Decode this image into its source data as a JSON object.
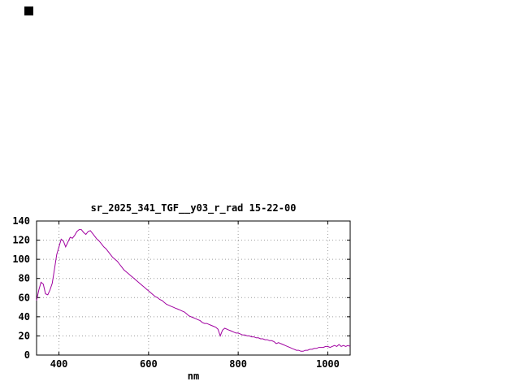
{
  "window": {
    "background": "#ffffff",
    "cursor_color": "#000000"
  },
  "chart_data": {
    "type": "line",
    "title": "sr_2025_341_TGF__y03_r_rad 15-22-00",
    "xlabel": "nm",
    "ylabel": "",
    "xlim": [
      350,
      1050
    ],
    "ylim": [
      0,
      140
    ],
    "xticks": [
      400,
      600,
      800,
      1000
    ],
    "yticks": [
      0,
      20,
      40,
      60,
      80,
      100,
      120,
      140
    ],
    "grid": "dotted",
    "legend": "none",
    "line_color": "#a000a0",
    "grid_color": "#9a9a9a",
    "border_color": "#000000",
    "x": [
      350,
      355,
      360,
      365,
      370,
      375,
      380,
      385,
      390,
      395,
      400,
      405,
      410,
      415,
      420,
      425,
      430,
      435,
      440,
      445,
      450,
      455,
      460,
      465,
      470,
      475,
      480,
      485,
      490,
      495,
      500,
      505,
      510,
      515,
      520,
      525,
      530,
      535,
      540,
      545,
      550,
      555,
      560,
      565,
      570,
      575,
      580,
      585,
      590,
      595,
      600,
      605,
      610,
      615,
      620,
      625,
      630,
      635,
      640,
      645,
      650,
      655,
      660,
      665,
      670,
      675,
      680,
      685,
      690,
      695,
      700,
      705,
      710,
      715,
      720,
      725,
      730,
      735,
      740,
      745,
      750,
      755,
      760,
      765,
      770,
      775,
      780,
      785,
      790,
      795,
      800,
      805,
      810,
      815,
      820,
      825,
      830,
      835,
      840,
      845,
      850,
      855,
      860,
      865,
      870,
      875,
      880,
      885,
      890,
      895,
      900,
      905,
      910,
      915,
      920,
      925,
      930,
      935,
      940,
      945,
      950,
      955,
      960,
      965,
      970,
      975,
      980,
      985,
      990,
      995,
      1000,
      1005,
      1010,
      1015,
      1020,
      1025,
      1030,
      1035,
      1040,
      1045,
      1050
    ],
    "y": [
      57,
      68,
      76,
      74,
      64,
      63,
      68,
      75,
      90,
      105,
      113,
      121,
      119,
      113,
      118,
      123,
      122,
      125,
      129,
      131,
      131,
      128,
      126,
      129,
      130,
      127,
      124,
      121,
      119,
      116,
      113,
      111,
      108,
      105,
      102,
      100,
      98,
      95,
      92,
      89,
      87,
      85,
      83,
      81,
      79,
      77,
      75,
      73,
      71,
      69,
      67,
      65,
      63,
      61,
      60,
      58,
      57,
      55,
      53,
      52,
      51,
      50,
      49,
      48,
      47,
      46,
      45,
      43,
      41,
      40,
      39,
      38,
      37,
      36,
      34,
      33,
      33,
      32,
      31,
      30,
      29,
      27,
      20,
      26,
      28,
      27,
      26,
      25,
      24,
      23,
      23,
      22,
      21,
      21,
      20,
      20,
      19,
      19,
      18,
      18,
      17,
      17,
      16,
      16,
      15,
      15,
      14,
      12,
      13,
      12,
      11,
      10,
      9,
      8,
      7,
      6,
      5,
      5,
      4,
      4,
      5,
      5,
      6,
      6,
      7,
      7,
      8,
      8,
      8,
      9,
      9,
      8,
      9,
      10,
      9,
      11,
      9,
      10,
      9,
      10,
      9
    ]
  }
}
